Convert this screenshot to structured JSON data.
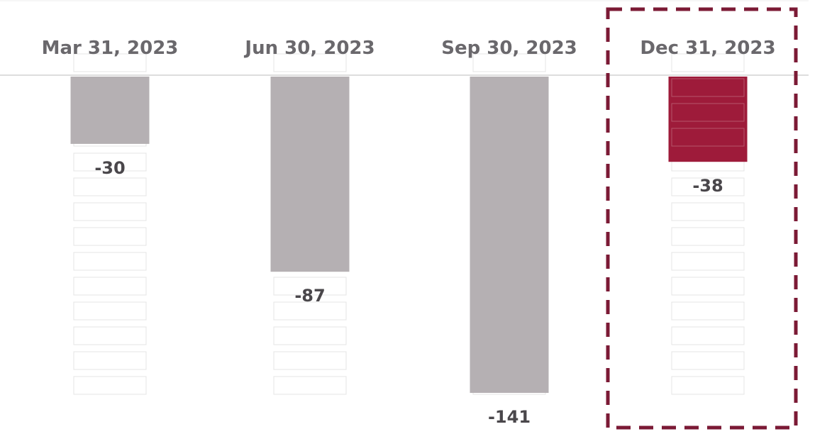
{
  "chart_data": {
    "type": "bar",
    "categories": [
      "Mar 31, 2023",
      "Jun 30, 2023",
      "Sep 30, 2023",
      "Dec 31, 2023"
    ],
    "values": [
      -30,
      -87,
      -141,
      -38
    ],
    "value_labels": [
      "-30",
      "-87",
      "-141",
      "-38"
    ],
    "title": "",
    "xlabel": "",
    "ylabel": "",
    "ylim": [
      -141,
      0
    ],
    "grid": false,
    "highlighted_category": "Dec 31, 2023",
    "colors": {
      "bar": "#b5b0b3",
      "highlight_bar": "#9e1b3a",
      "highlight_frame": "#7b1a35",
      "category_text": "#6a686c",
      "value_text": "#4a474b",
      "axis": "#d2d2d2"
    }
  }
}
